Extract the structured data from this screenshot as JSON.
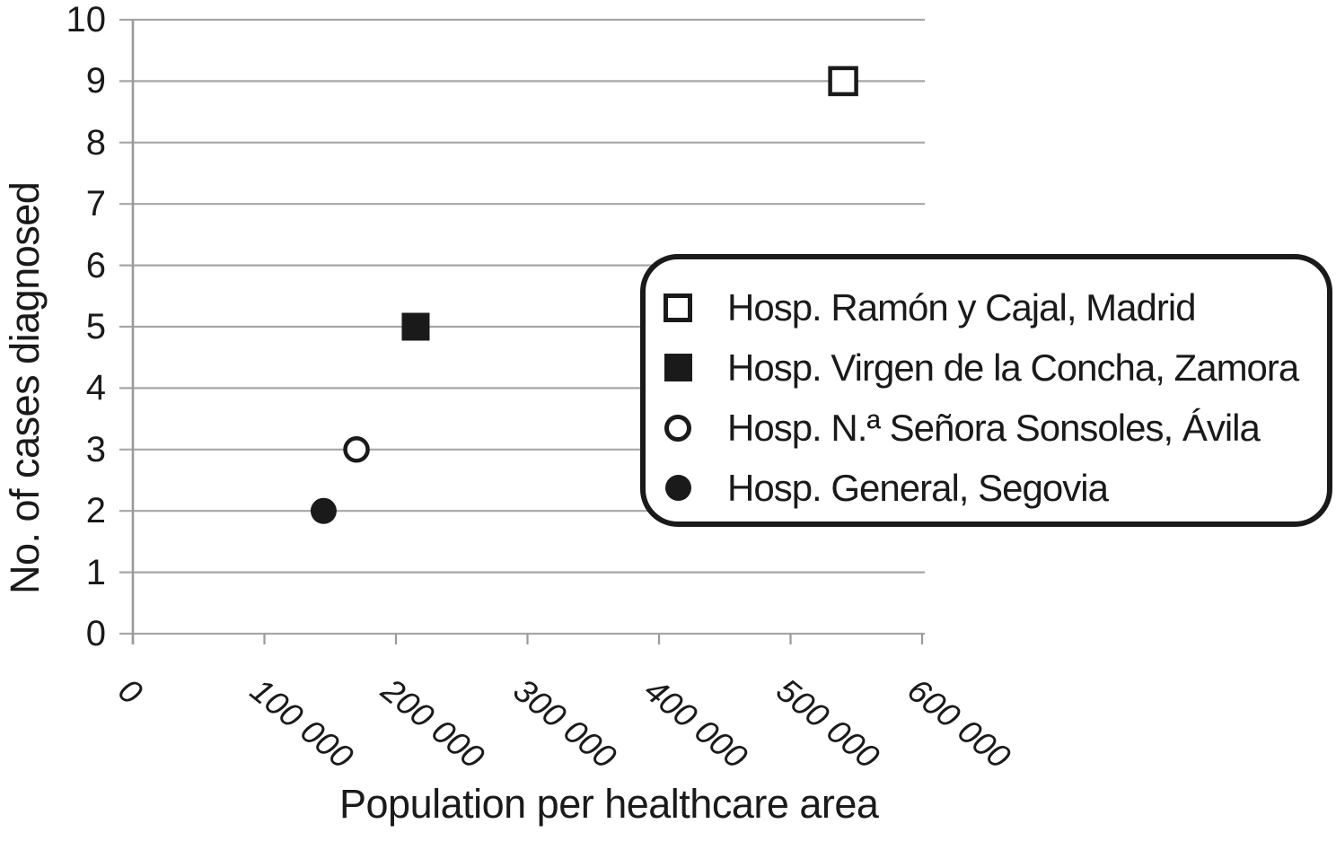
{
  "chart_data": {
    "type": "scatter",
    "title": "",
    "xlabel": "Population per healthcare area",
    "ylabel": "No. of cases diagnosed",
    "xlim": [
      0,
      600000
    ],
    "ylim": [
      0,
      10
    ],
    "x_ticks": [
      0,
      100000,
      200000,
      300000,
      400000,
      500000,
      600000
    ],
    "x_tick_labels": [
      "0",
      "100 000",
      "200 000",
      "300 000",
      "400 000",
      "500 000",
      "600 000"
    ],
    "y_ticks": [
      10,
      9,
      8,
      7,
      6,
      5,
      4,
      3,
      2,
      1,
      0
    ],
    "grid": "horizontal gridlines only, with short tick stubs left of y-axis and below x-axis",
    "legend_position": "inside plot, upper right, rounded black-bordered box",
    "series": [
      {
        "name": "Hosp. Ramón y Cajal, Madrid",
        "marker": "open-square",
        "points": [
          [
            540000,
            9
          ]
        ]
      },
      {
        "name": "Hosp. Virgen de la Concha, Zamora",
        "marker": "filled-square",
        "points": [
          [
            215000,
            5
          ]
        ]
      },
      {
        "name": "Hosp. N.ª Señora Sonsoles, Ávila",
        "marker": "open-circle",
        "points": [
          [
            170000,
            3
          ]
        ]
      },
      {
        "name": "Hosp. General, Segovia",
        "marker": "filled-circle",
        "points": [
          [
            145000,
            2
          ]
        ]
      }
    ],
    "colors": {
      "marker": "#1a1a1a",
      "gridline": "#a6a6a6",
      "axis_line": "#9a9a9a",
      "text": "#1a1a1a",
      "legend_border": "#1a1a1a",
      "background": "#ffffff"
    }
  }
}
